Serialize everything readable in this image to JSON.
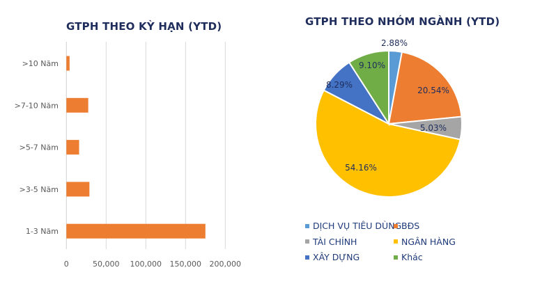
{
  "bar_chart": {
    "title": "GTPH THEO KỲ HẠN (YTD)",
    "bar_color": "#ED7D31"
  },
  "pie_chart": {
    "title": "GTPH THEO NHÓM NGÀNH (YTD)",
    "label_color": "#1F2D5C"
  },
  "chart_data": [
    {
      "type": "bar",
      "orientation": "horizontal",
      "title": "GTPH THEO KỲ HẠN (YTD)",
      "categories": [
        ">10 Năm",
        ">7-10 Năm",
        ">5-7 Năm",
        ">3-5 Năm",
        "1-3 Năm"
      ],
      "values": [
        4000,
        27500,
        16000,
        29000,
        175000
      ],
      "xlabel": "",
      "ylabel": "",
      "xlim": [
        0,
        200000
      ],
      "xticks": [
        "0",
        "50,000",
        "100,000",
        "150,000",
        "200,000"
      ],
      "grid": true,
      "legend": null,
      "color": "#ED7D31"
    },
    {
      "type": "pie",
      "title": "GTPH THEO NHÓM NGÀNH (YTD)",
      "categories": [
        "DỊCH VỤ TIÊU DÙNG",
        "BĐS",
        "TÀI CHÍNH",
        "NGÂN HÀNG",
        "XÂY DỰNG",
        "Khác"
      ],
      "values": [
        2.88,
        20.54,
        5.03,
        54.16,
        8.29,
        9.1
      ],
      "labels": [
        "2.88%",
        "20.54%",
        "5.03%",
        "54.16%",
        "8.29%",
        "9.10%"
      ],
      "colors": [
        "#5B9BD5",
        "#ED7D31",
        "#A5A5A5",
        "#FFC000",
        "#4472C4",
        "#70AD47"
      ],
      "legend_position": "bottom"
    }
  ]
}
